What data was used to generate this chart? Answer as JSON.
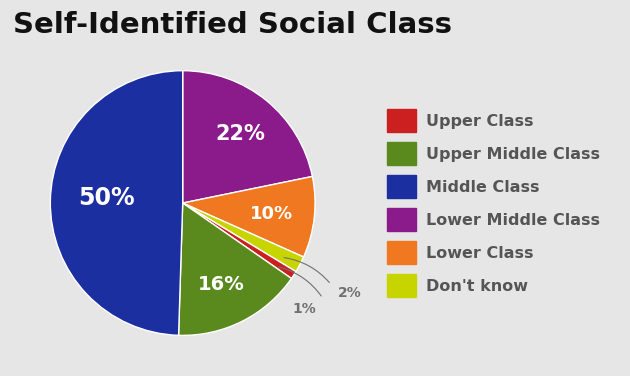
{
  "title": "Self-Identified Social Class",
  "slices": [
    {
      "label": "Upper Class",
      "pct": 1,
      "color": "#cc2020"
    },
    {
      "label": "Upper Middle Class",
      "pct": 16,
      "color": "#5a8a1e"
    },
    {
      "label": "Middle Class",
      "pct": 50,
      "color": "#1c2fa0"
    },
    {
      "label": "Lower Middle Class",
      "pct": 22,
      "color": "#8b1a8b"
    },
    {
      "label": "Lower Class",
      "pct": 10,
      "color": "#f07820"
    },
    {
      "label": "Don't know",
      "pct": 2,
      "color": "#c8d400"
    }
  ],
  "legend_order": [
    "Upper Class",
    "Upper Middle Class",
    "Middle Class",
    "Lower Middle Class",
    "Lower Class",
    "Don't know"
  ],
  "background_color": "#e6e6e6",
  "title_fontsize": 21,
  "legend_fontsize": 11.5,
  "label_colors": {
    "Upper Class": "#707070",
    "Upper Middle Class": "#ffffff",
    "Middle Class": "#ffffff",
    "Lower Middle Class": "#ffffff",
    "Lower Class": "#ffffff",
    "Don't know": "#707070"
  },
  "outside_labels": [
    "Upper Class",
    "Don't know"
  ],
  "small_label_color": "#707070"
}
